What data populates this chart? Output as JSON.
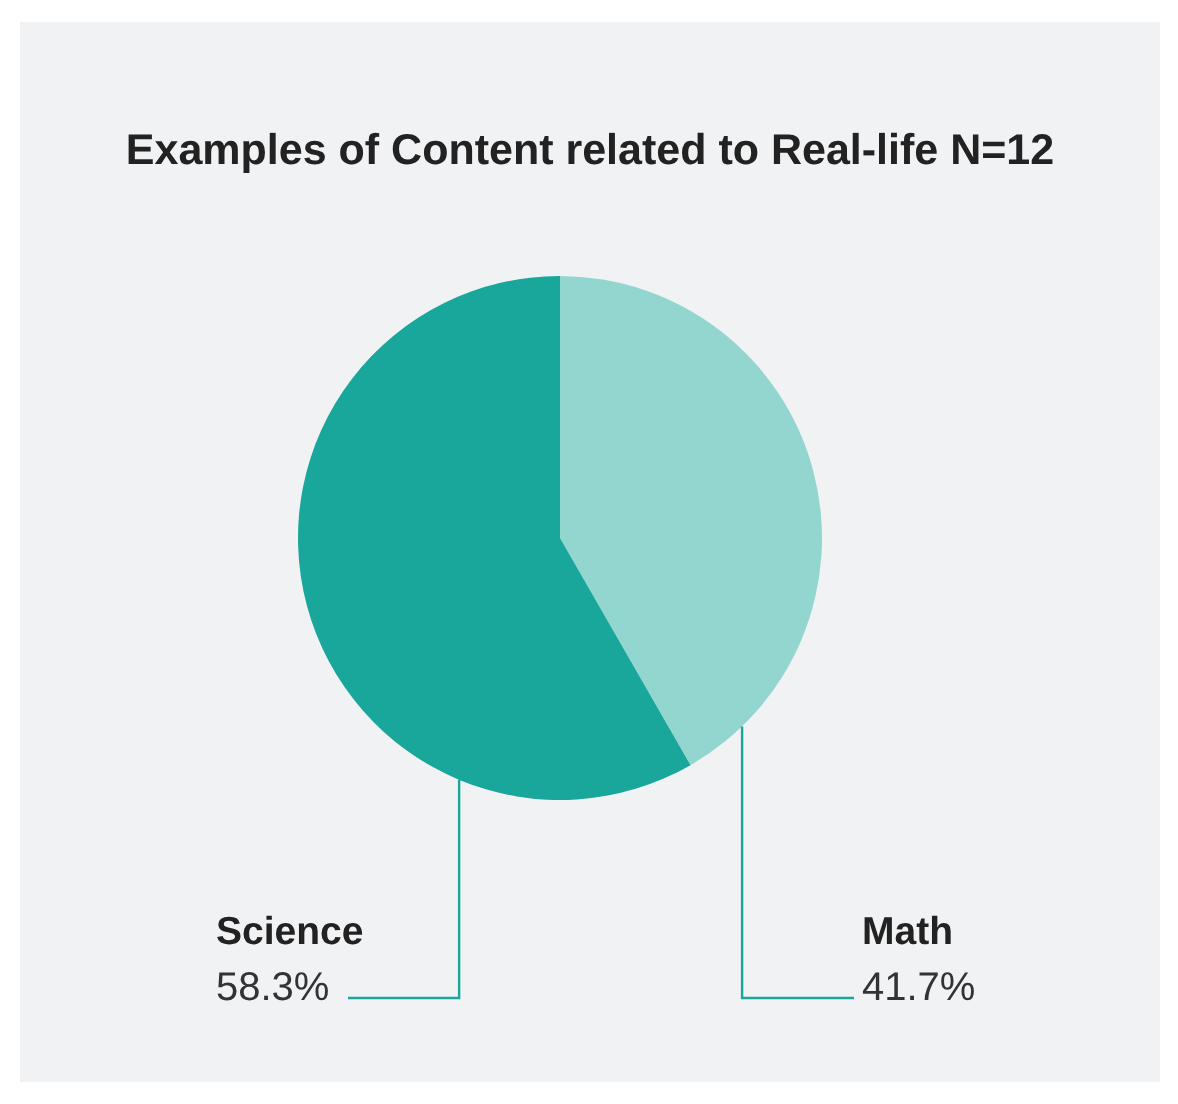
{
  "chart_data": {
    "type": "pie",
    "title": "Examples of Content related to Real-life N=12",
    "categories": [
      "Math",
      "Science"
    ],
    "values": [
      41.7,
      58.3
    ],
    "colors": [
      "#93d5cf",
      "#19a69b"
    ],
    "value_labels": [
      "41.7%",
      "58.3%"
    ]
  }
}
